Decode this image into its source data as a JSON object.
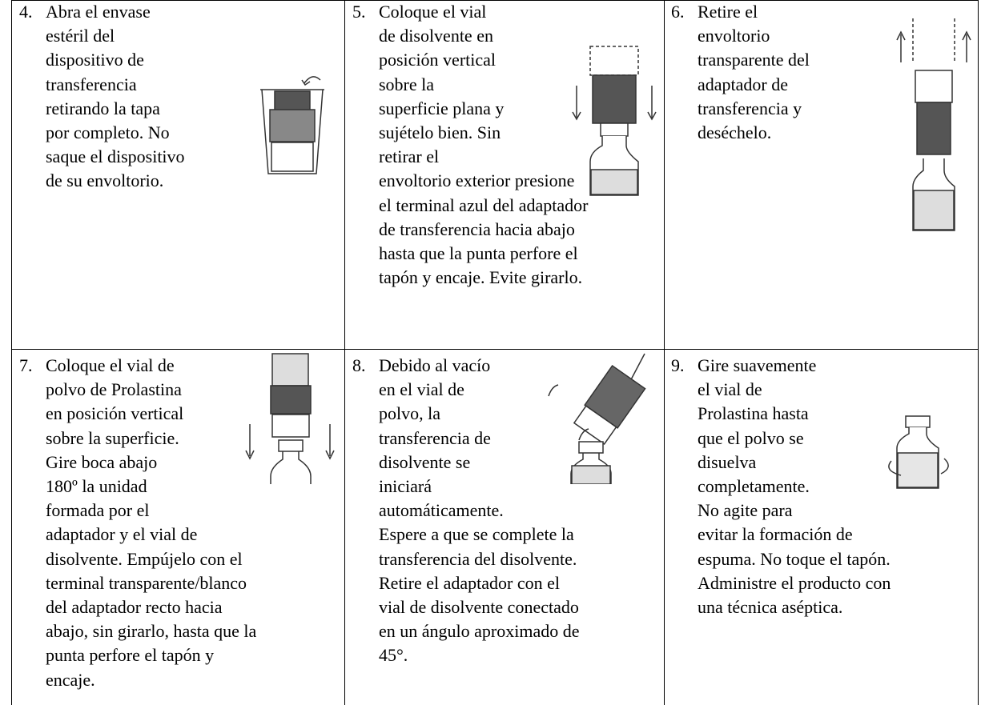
{
  "cells": [
    {
      "number": "4.",
      "lines": [
        "Abra el envase",
        "estéril del",
        "dispositivo de",
        "transferencia",
        "retirando la tapa",
        "por completo. No",
        "saque el dispositivo",
        "de su envoltorio."
      ]
    },
    {
      "number": "5.",
      "lines": [
        "Coloque el vial",
        "de disolvente en",
        "posición vertical",
        "sobre la",
        "superficie plana y",
        "sujételo bien. Sin",
        "retirar el",
        "envoltorio exterior presione",
        "el terminal azul del adaptador",
        "de transferencia hacia abajo",
        "hasta que la punta perfore el",
        "tapón y encaje. Evite girarlo."
      ]
    },
    {
      "number": "6.",
      "lines": [
        "Retire el",
        "envoltorio",
        "transparente del",
        "adaptador de",
        "transferencia y",
        "deséchelo."
      ]
    },
    {
      "number": "7.",
      "lines": [
        "Coloque el vial de",
        "polvo de Prolastina",
        "en posición vertical",
        "sobre la superficie.",
        "Gire boca abajo",
        "180º la unidad",
        "formada por el",
        "adaptador y el vial de",
        "disolvente. Empújelo con el",
        "terminal transparente/blanco",
        "del adaptador recto hacia",
        "abajo, sin girarlo, hasta que la",
        "punta perfore el tapón y",
        "encaje."
      ]
    },
    {
      "number": "8.",
      "lines": [
        "Debido al vacío",
        "en el vial de",
        "polvo, la",
        "transferencia de",
        "disolvente se",
        "iniciará",
        "automáticamente.",
        "Espere a que se complete la",
        "transferencia del disolvente.",
        "Retire el adaptador con el",
        "vial de disolvente conectado",
        "en un ángulo aproximado de",
        "45°."
      ]
    },
    {
      "number": "9.",
      "lines": [
        "Gire suavemente",
        "el vial de",
        "Prolastina hasta",
        "que el polvo se",
        "disuelva",
        "completamente.",
        "No agite para",
        "evitar la formación de",
        "espuma. No toque el tapón.",
        "Administre el producto con",
        "una técnica aséptica."
      ]
    }
  ]
}
